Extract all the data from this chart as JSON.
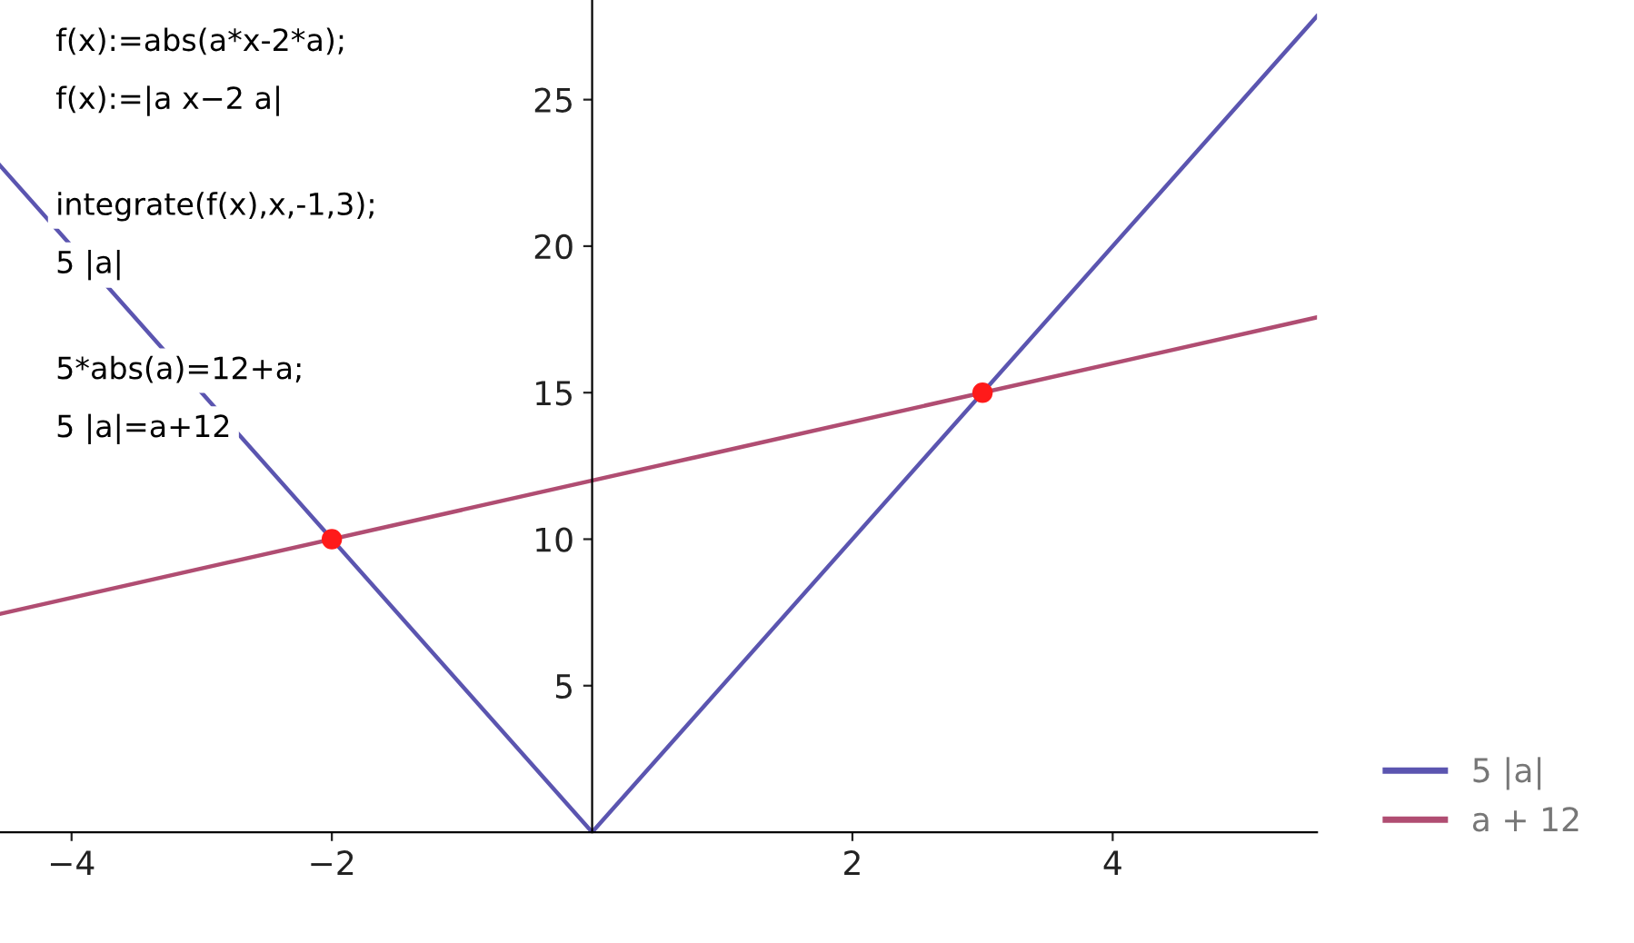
{
  "chart_data": {
    "type": "line",
    "xlim": [
      -4.55,
      5.57
    ],
    "ylim": [
      0,
      28.4
    ],
    "xticks": [
      {
        "value": -4,
        "label": "−4"
      },
      {
        "value": -2,
        "label": "−2"
      },
      2,
      4
    ],
    "yticks": [
      5,
      10,
      15,
      20,
      25
    ],
    "grid": false,
    "legend": "bottom right",
    "marker": "none",
    "line_style": "solid",
    "series": [
      {
        "name": "5 |a|",
        "color": "#5b55b0",
        "x": [
          -4.55,
          0,
          5.57
        ],
        "values": [
          22.75,
          0,
          27.85
        ]
      },
      {
        "name": "a + 12",
        "color": "#b04d72",
        "x": [
          -4.55,
          5.57
        ],
        "values": [
          7.45,
          17.57
        ]
      },
      {
        "type": "scatter",
        "marker": "circle",
        "color": "#ff1a1a",
        "x": [
          -2,
          3
        ],
        "values": [
          10,
          15
        ]
      }
    ],
    "annotations": [
      "f(x):=abs(a*x-2*a);",
      "f(x):=|a x−2 a|",
      "integrate(f(x),x,-1,3);",
      "5 |a|",
      "5*abs(a)=12+a;",
      "5 |a|=a+12"
    ]
  }
}
